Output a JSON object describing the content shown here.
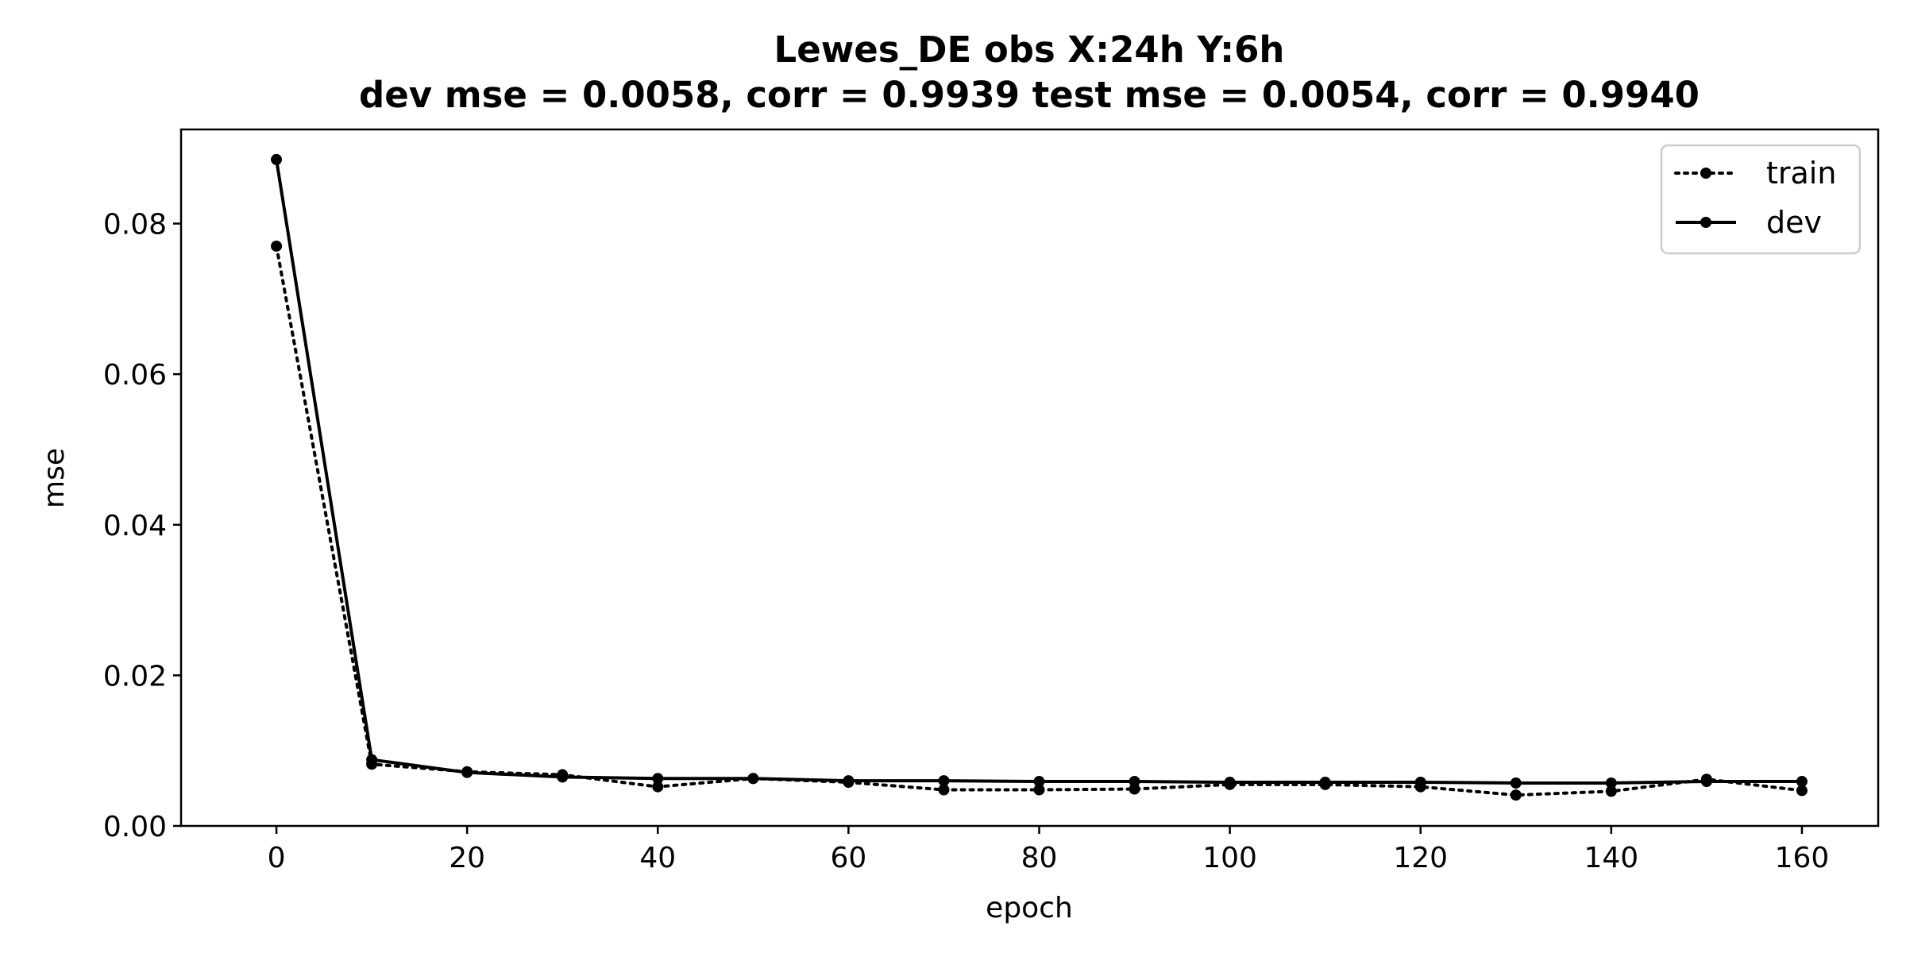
{
  "chart_data": {
    "type": "line",
    "title": "Lewes_DE   obs   X:24h   Y:6h",
    "subtitle": "dev mse = 0.0058, corr = 0.9939   test mse = 0.0054, corr = 0.9940",
    "xlabel": "epoch",
    "ylabel": "mse",
    "xlim": [
      -10,
      168
    ],
    "ylim": [
      0,
      0.0925
    ],
    "xticks": [
      0,
      20,
      40,
      60,
      80,
      100,
      120,
      140,
      160
    ],
    "yticks": [
      0.0,
      0.02,
      0.04,
      0.06,
      0.08
    ],
    "ytick_labels": [
      "0.00",
      "0.02",
      "0.04",
      "0.06",
      "0.08"
    ],
    "grid": false,
    "legend_position": "top-right",
    "x": [
      0,
      10,
      20,
      30,
      40,
      50,
      60,
      70,
      80,
      90,
      100,
      110,
      120,
      130,
      140,
      150,
      160
    ],
    "series": [
      {
        "name": "train",
        "style": "dotted",
        "color": "#000000",
        "values": [
          0.077,
          0.0082,
          0.0072,
          0.0068,
          0.0052,
          0.0063,
          0.0058,
          0.0048,
          0.0048,
          0.0049,
          0.0055,
          0.0055,
          0.0052,
          0.0041,
          0.0046,
          0.0062,
          0.0047
        ]
      },
      {
        "name": "dev",
        "style": "solid",
        "color": "#000000",
        "values": [
          0.0885,
          0.0088,
          0.0071,
          0.0065,
          0.0063,
          0.0063,
          0.006,
          0.006,
          0.0059,
          0.0059,
          0.0058,
          0.0058,
          0.0058,
          0.0057,
          0.0057,
          0.0059,
          0.0059
        ]
      }
    ]
  }
}
